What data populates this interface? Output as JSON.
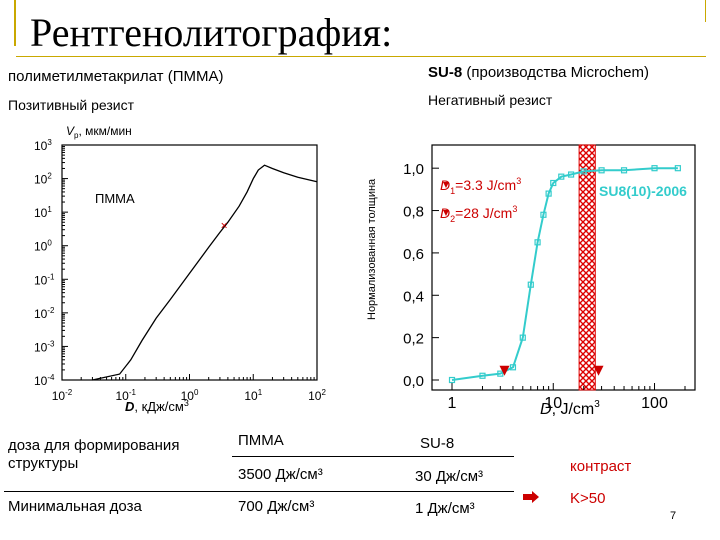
{
  "slide": {
    "title": "Рентгенолитография:",
    "left_heading": "полиметилметакрилат (ПММА)",
    "left_sub": "Позитивный резист",
    "right_heading_bold": "SU-8",
    "right_heading_rest": " (производства Microchem)",
    "right_sub": "Негативный резист",
    "page_number": "7"
  },
  "chart_data": [
    {
      "type": "line",
      "title": "",
      "ylabel": "Vp, мкм/мин",
      "ylabel_sub": "р",
      "xlabel": "D, кДж/см³",
      "xscale": "log",
      "yscale": "log",
      "xlim": [
        0.01,
        100
      ],
      "ylim": [
        0.0001,
        1000
      ],
      "x_ticks": [
        "10-2",
        "10-1",
        "100",
        "101",
        "102"
      ],
      "y_ticks": [
        "10-4",
        "10-3",
        "10-2",
        "10-1",
        "100",
        "101",
        "102",
        "103"
      ],
      "annotation": "ПММА",
      "series": [
        {
          "x": [
            0.03,
            0.08,
            0.12,
            0.18,
            0.3,
            0.5,
            1,
            2,
            3,
            4,
            6,
            8,
            10,
            12,
            15,
            20,
            30,
            50,
            100
          ],
          "y": [
            0.0001,
            0.00015,
            0.0004,
            0.0015,
            0.007,
            0.025,
            0.15,
            0.9,
            2.5,
            5,
            15,
            40,
            100,
            180,
            250,
            200,
            150,
            110,
            80
          ]
        }
      ],
      "marker": {
        "x": 3.5,
        "y": 4
      }
    },
    {
      "type": "line",
      "title": "",
      "ylabel": "Нормализованная толщина",
      "xlabel": "D, J/cm³",
      "xscale": "log",
      "xlim": [
        1,
        200
      ],
      "ylim": [
        0,
        1.1
      ],
      "x_ticks": [
        "1",
        "10",
        "100"
      ],
      "y_ticks": [
        "0,0",
        "0,2",
        "0,4",
        "0,6",
        "0,8",
        "1,0"
      ],
      "legend": "SU8(10)-2006",
      "annotations": [
        "D =3.3 J/cm",
        "D =28 J/cm"
      ],
      "annotation_subs": [
        "1",
        "2"
      ],
      "annotation_sups": [
        "3",
        "3"
      ],
      "series": [
        {
          "x": [
            1,
            2,
            3,
            4,
            5,
            6,
            7,
            8,
            9,
            10,
            12,
            15,
            20,
            30,
            50,
            100,
            170
          ],
          "y": [
            0.0,
            0.02,
            0.03,
            0.06,
            0.2,
            0.45,
            0.65,
            0.78,
            0.88,
            0.93,
            0.96,
            0.97,
            0.985,
            0.99,
            0.99,
            1.0,
            1.0
          ]
        }
      ],
      "d1_marker": {
        "x": 3.3,
        "y": 0.02
      },
      "d2_marker": {
        "x": 28,
        "y": 0.02
      },
      "hatched_band": [
        18,
        26
      ]
    }
  ],
  "table": {
    "r1c1": "доза для формирования",
    "r1c1b": "структуры",
    "h_pmma": "ПММА",
    "h_su8": "SU-8",
    "r1_pmma": "3500 Дж/см³",
    "r1_su8": "30 Дж/см³",
    "r2c1": "Минимальная доза",
    "r2_pmma": "700 Дж/см³",
    "r2_su8": "1 Дж/см³",
    "contrast_label": "контраст",
    "contrast_value": "K>50"
  }
}
